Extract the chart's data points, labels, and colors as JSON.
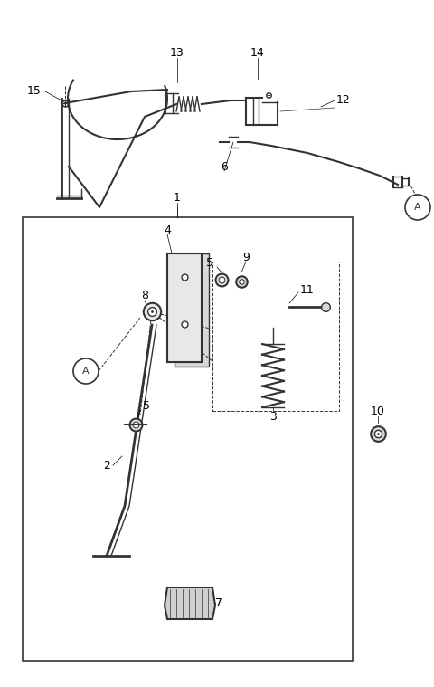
{
  "fig_width": 4.8,
  "fig_height": 7.59,
  "dpi": 100,
  "bg_color": "#ffffff",
  "lc": "#555555",
  "lc_dark": "#333333"
}
